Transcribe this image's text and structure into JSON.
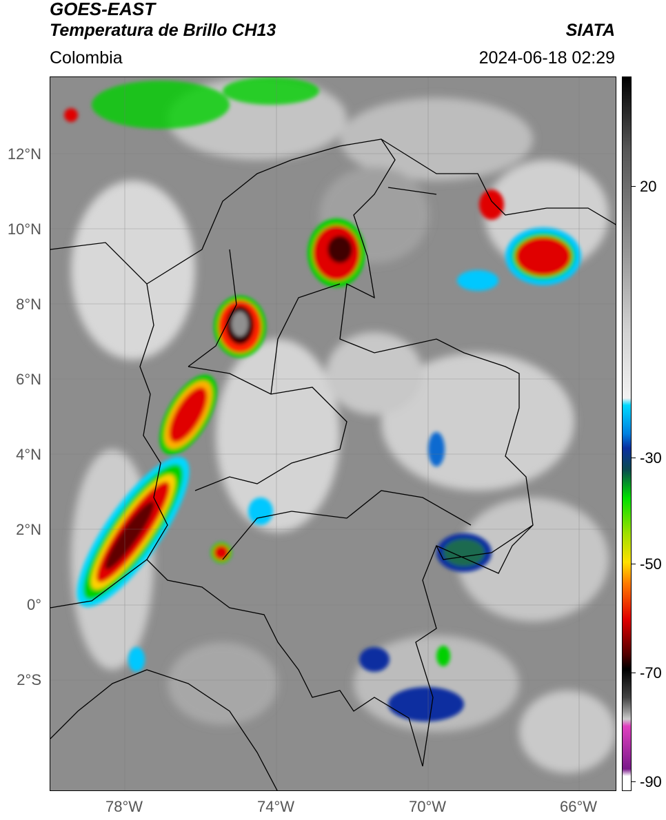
{
  "header": {
    "title": "GOES-EAST",
    "subtitle": "Temperatura de Brillo CH13",
    "brand": "SIATA",
    "region": "Colombia",
    "datetime": "2024-06-18 02:29"
  },
  "axes": {
    "lat_labels": [
      "12°N",
      "10°N",
      "8°N",
      "6°N",
      "4°N",
      "2°N",
      "0°",
      "2°S"
    ],
    "lon_labels": [
      "78°W",
      "74°W",
      "70°W",
      "66°W"
    ]
  },
  "colorbar": {
    "labels": [
      "20",
      "-30",
      "-50",
      "-70",
      "-90"
    ],
    "colors": {
      "top_black": "#000000",
      "gray_light": "#f2f2f2",
      "cyan": "#00d8ff",
      "blue": "#0a2fa0",
      "green": "#00e000",
      "yellow": "#ffe000",
      "orange": "#ff7a00",
      "red": "#e00000",
      "dark_red": "#500000",
      "magenta": "#e040c0",
      "purple": "#7a1a8a"
    }
  },
  "map": {
    "background_color": "#8a8a8a"
  }
}
